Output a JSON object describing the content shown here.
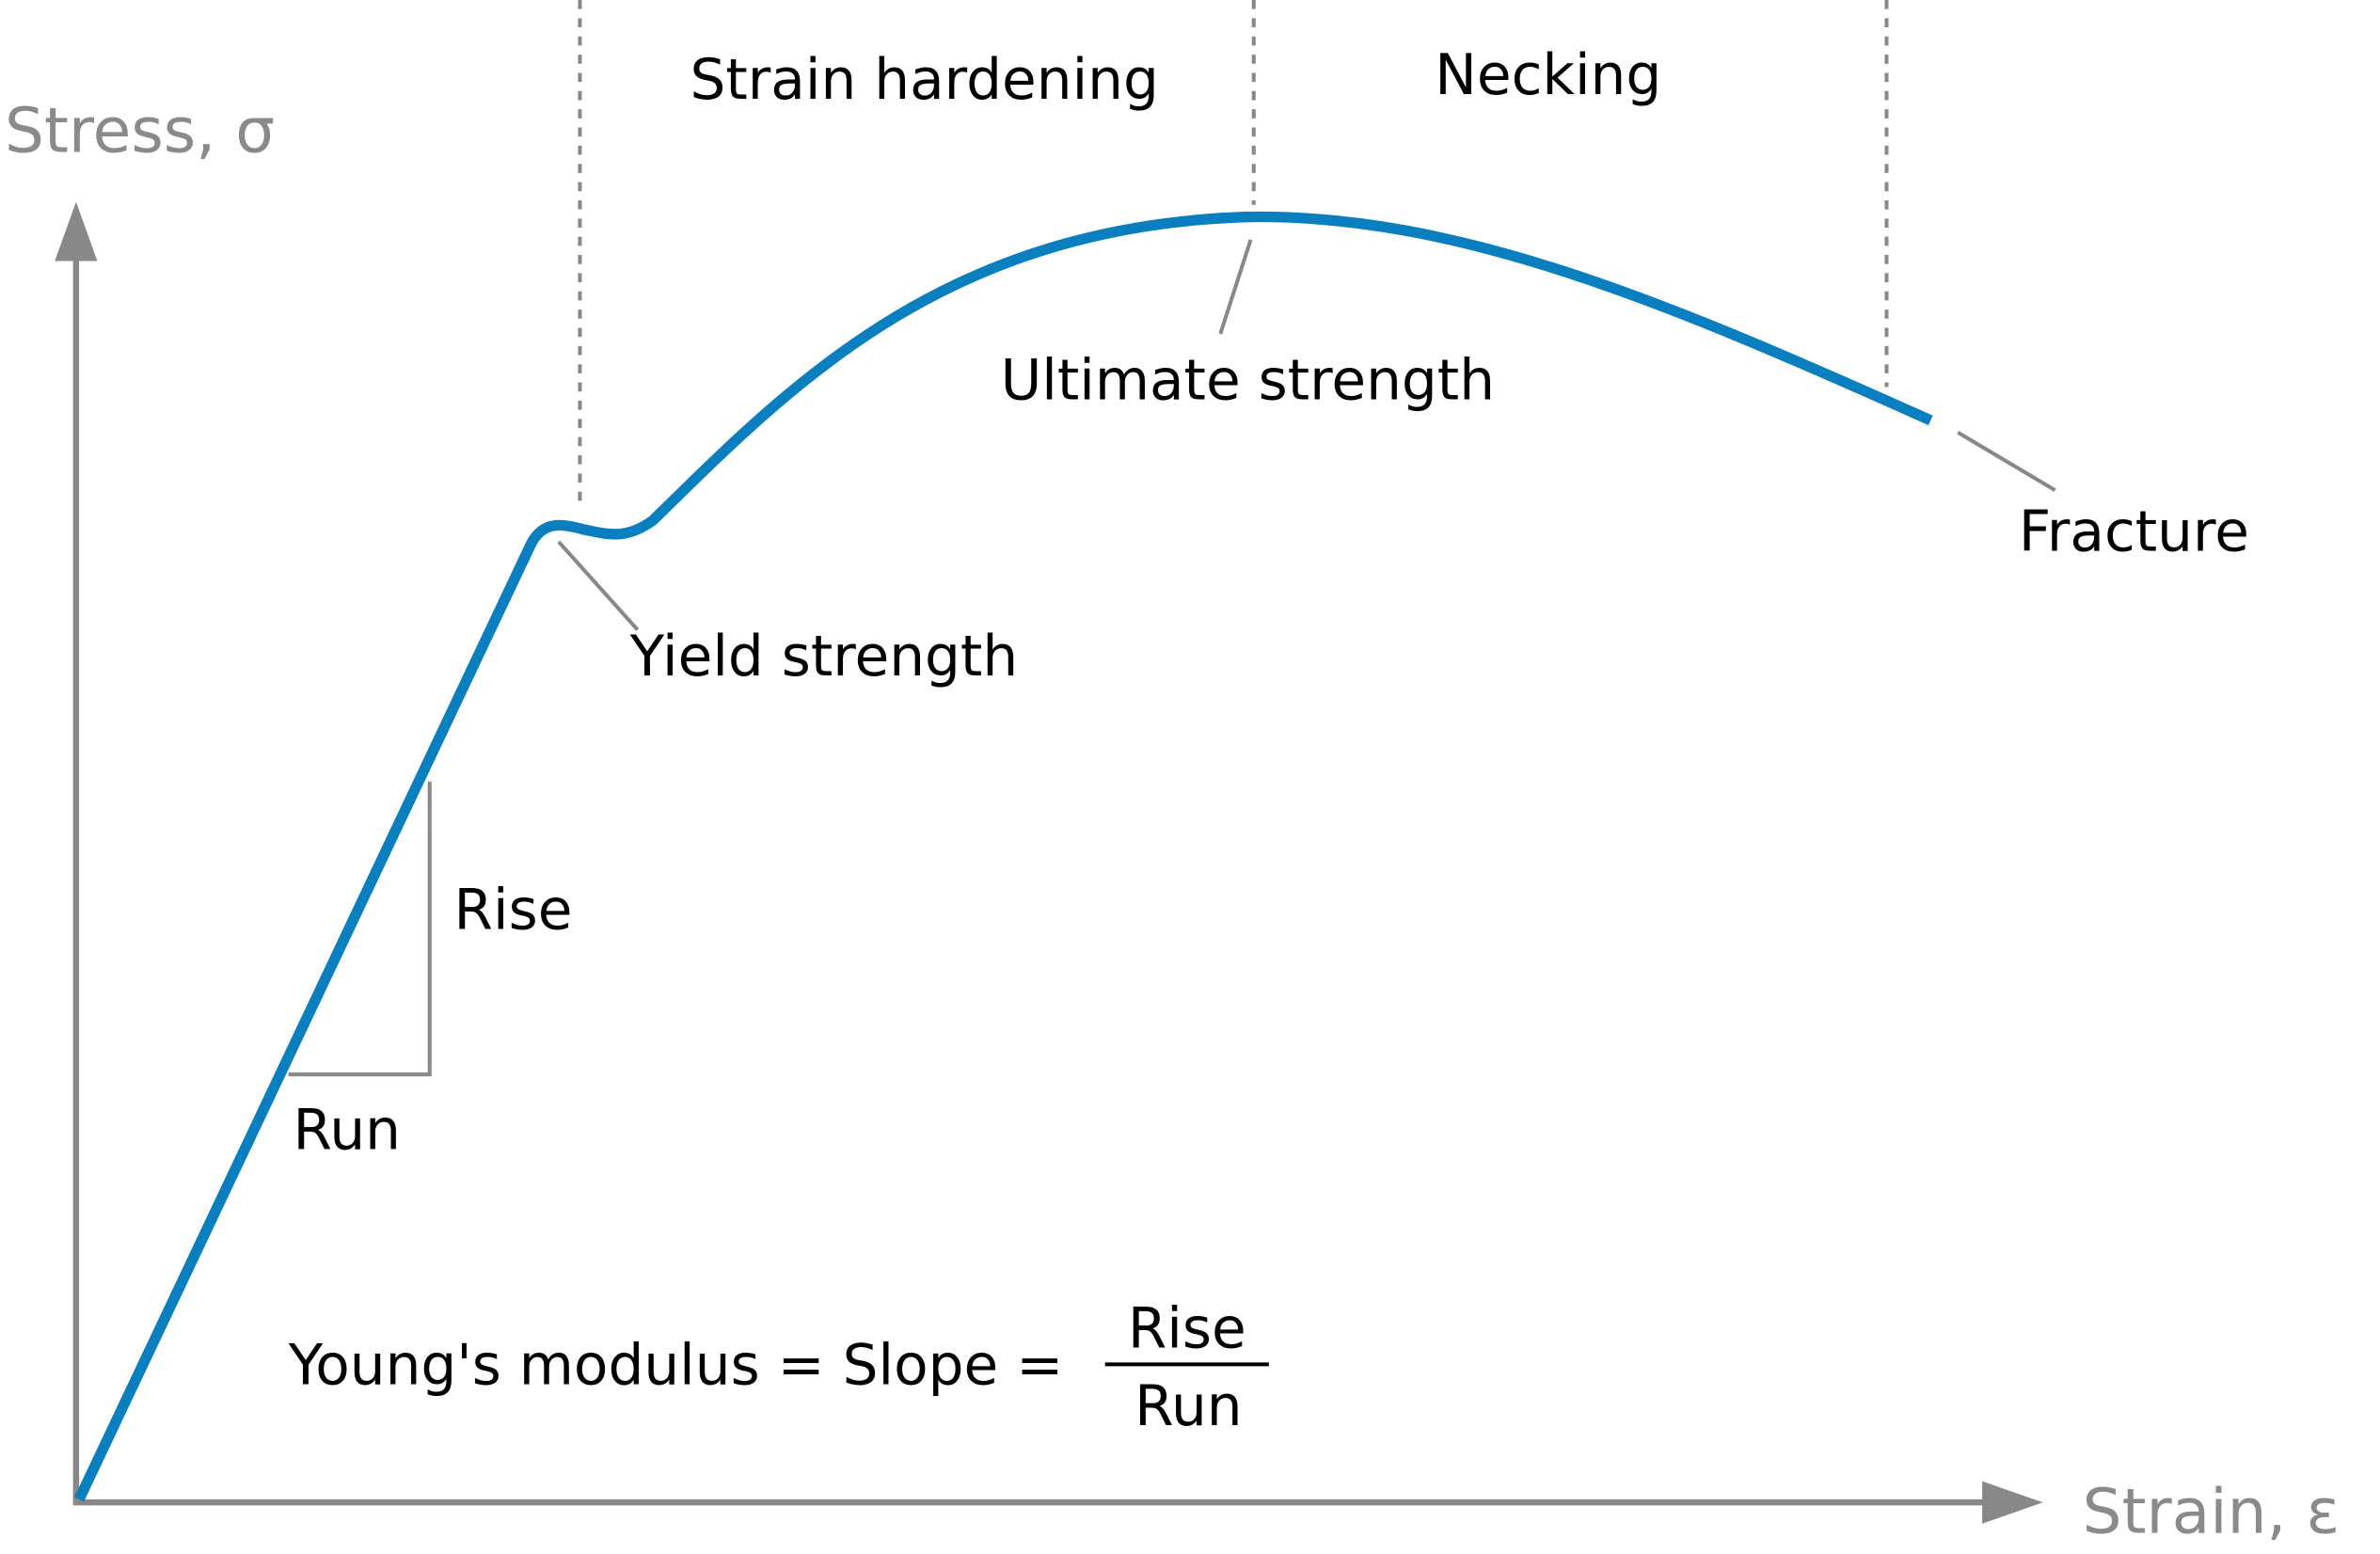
{
  "axes": {
    "y_label": "Stress, σ",
    "x_label": "Strain, ε"
  },
  "regions": [
    "Strain hardening",
    "Necking"
  ],
  "annotations": {
    "ultimate": "Ultimate strength",
    "yield": "Yield strength",
    "fracture": "Fracture",
    "rise": "Rise",
    "run": "Run"
  },
  "formula": {
    "lhs": "Young's modulus = Slope =",
    "numerator": "Rise",
    "denominator": "Run"
  }
}
